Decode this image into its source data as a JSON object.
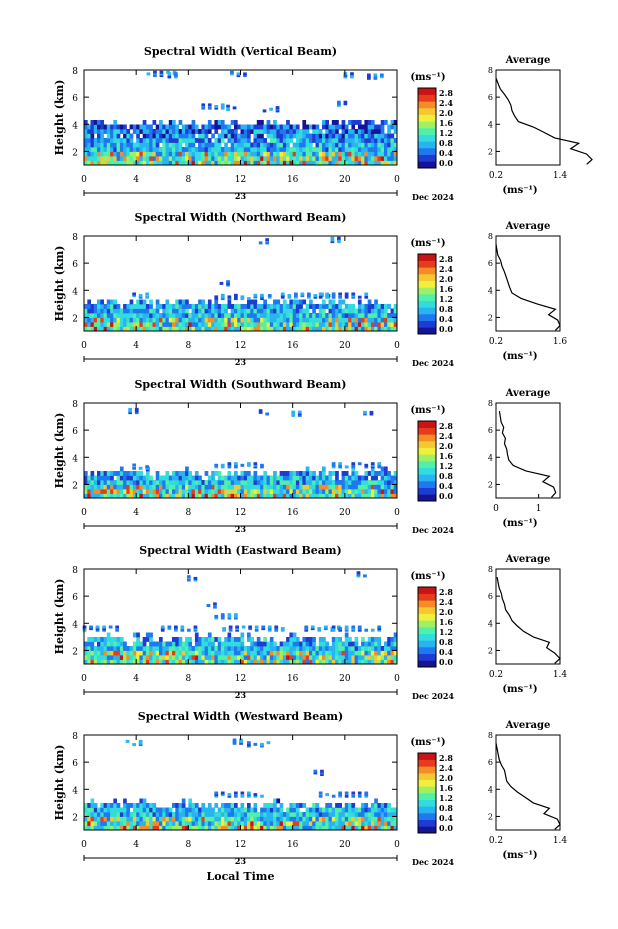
{
  "chart_data": {
    "type": "heatmap",
    "shared": {
      "x_ticks": [
        "0",
        "4",
        "8",
        "12",
        "16",
        "20",
        "0"
      ],
      "xlim": [
        0,
        24
      ],
      "date_day": "23",
      "date_label": "Dec 2024",
      "ylabel": "Height (km)",
      "y_ticks": [
        "2",
        "4",
        "6",
        "8"
      ],
      "ylim": [
        1,
        8
      ],
      "unit_label": "(ms⁻¹)",
      "colorbar_ticks": [
        "0.0",
        "0.4",
        "0.8",
        "1.2",
        "1.6",
        "2.0",
        "2.4",
        "2.8"
      ],
      "colorbar_range": [
        0,
        3.0
      ],
      "colorscale": [
        "#141496",
        "#1e3cd2",
        "#1e78f0",
        "#28b4f0",
        "#32dcdc",
        "#50f0aa",
        "#a0f064",
        "#f0f03c",
        "#f5c832",
        "#f58c28",
        "#e63c1e",
        "#c81414"
      ],
      "avg_title": "Average",
      "avg_xlabel": "(ms⁻¹)",
      "xlabel_bottom": "Local Time"
    },
    "panels": [
      {
        "title": "Spectral Width (Vertical Beam)",
        "avg_xticks": [
          "0.2",
          "1.4"
        ],
        "avg_xlim": [
          0.2,
          1.4
        ],
        "cover_top": 4.0,
        "profile": [
          [
            1.05,
            1.9
          ],
          [
            1.4,
            2.0
          ],
          [
            1.8,
            1.9
          ],
          [
            2.2,
            1.6
          ],
          [
            2.6,
            1.75
          ],
          [
            3.0,
            1.3
          ],
          [
            3.4,
            1.1
          ],
          [
            3.8,
            0.9
          ],
          [
            4.2,
            0.62
          ],
          [
            4.6,
            0.55
          ],
          [
            5.0,
            0.5
          ],
          [
            5.4,
            0.48
          ],
          [
            5.8,
            0.43
          ],
          [
            6.2,
            0.36
          ],
          [
            6.6,
            0.28
          ],
          [
            7.0,
            0.24
          ],
          [
            7.4,
            0.2
          ]
        ],
        "aloft": [
          [
            6,
            7.7,
            0.6
          ],
          [
            7,
            7.6,
            0.3
          ],
          [
            12,
            7.7,
            0.4
          ],
          [
            20.5,
            7.6,
            0.3
          ],
          [
            22.5,
            7.5,
            0.4
          ],
          [
            10,
            5.3,
            0.5
          ],
          [
            11.5,
            5.2,
            0.3
          ],
          [
            14.5,
            5.1,
            0.4
          ],
          [
            20,
            5.5,
            0.3
          ]
        ]
      },
      {
        "title": "Spectral Width (Northward Beam)",
        "avg_xticks": [
          "0.2",
          "1.6"
        ],
        "avg_xlim": [
          0.2,
          1.6
        ],
        "cover_top": 3.0,
        "profile": [
          [
            1.05,
            1.5
          ],
          [
            1.4,
            1.6
          ],
          [
            1.8,
            1.55
          ],
          [
            2.2,
            1.35
          ],
          [
            2.6,
            1.5
          ],
          [
            3.0,
            1.1
          ],
          [
            3.4,
            0.75
          ],
          [
            3.8,
            0.55
          ],
          [
            4.2,
            0.5
          ],
          [
            4.6,
            0.46
          ],
          [
            5.0,
            0.42
          ],
          [
            5.4,
            0.38
          ],
          [
            5.8,
            0.33
          ],
          [
            6.2,
            0.3
          ],
          [
            6.6,
            0.24
          ],
          [
            7.0,
            0.22
          ],
          [
            7.4,
            0.2
          ]
        ],
        "aloft": [
          [
            12,
            3.5,
            1.0
          ],
          [
            16.5,
            3.6,
            1.2
          ],
          [
            20,
            3.6,
            1.0
          ],
          [
            14,
            7.6,
            0.3
          ],
          [
            19.5,
            7.7,
            0.3
          ],
          [
            4.5,
            3.6,
            0.4
          ],
          [
            11,
            4.5,
            0.3
          ]
        ]
      },
      {
        "title": "Spectral Width (Southward Beam)",
        "avg_xticks": [
          "0",
          "1"
        ],
        "avg_xlim": [
          0,
          1.5
        ],
        "cover_top": 2.8,
        "profile": [
          [
            1.05,
            1.3
          ],
          [
            1.4,
            1.4
          ],
          [
            1.8,
            1.35
          ],
          [
            2.2,
            1.1
          ],
          [
            2.6,
            1.25
          ],
          [
            3.0,
            0.7
          ],
          [
            3.4,
            0.4
          ],
          [
            3.8,
            0.3
          ],
          [
            4.2,
            0.27
          ],
          [
            4.6,
            0.25
          ],
          [
            5.0,
            0.2
          ],
          [
            5.4,
            0.22
          ],
          [
            5.8,
            0.15
          ],
          [
            6.2,
            0.18
          ],
          [
            6.6,
            0.12
          ],
          [
            7.0,
            0.1
          ],
          [
            7.4,
            0.08
          ]
        ],
        "aloft": [
          [
            12,
            3.4,
            1.0
          ],
          [
            21,
            3.4,
            1.0
          ],
          [
            4.5,
            3.3,
            0.4
          ],
          [
            14,
            7.3,
            0.3
          ],
          [
            22,
            7.3,
            0.3
          ],
          [
            4,
            7.4,
            0.3
          ],
          [
            16.5,
            7.2,
            0.3
          ]
        ]
      },
      {
        "title": "Spectral Width (Eastward Beam)",
        "avg_xticks": [
          "0.2",
          "1.4"
        ],
        "avg_xlim": [
          0.2,
          1.4
        ],
        "cover_top": 2.8,
        "profile": [
          [
            1.05,
            1.3
          ],
          [
            1.4,
            1.4
          ],
          [
            1.8,
            1.3
          ],
          [
            2.2,
            1.15
          ],
          [
            2.6,
            1.2
          ],
          [
            3.0,
            0.9
          ],
          [
            3.4,
            0.72
          ],
          [
            3.8,
            0.6
          ],
          [
            4.2,
            0.5
          ],
          [
            4.6,
            0.45
          ],
          [
            5.0,
            0.38
          ],
          [
            5.4,
            0.36
          ],
          [
            5.8,
            0.32
          ],
          [
            6.2,
            0.3
          ],
          [
            6.6,
            0.26
          ],
          [
            7.0,
            0.24
          ],
          [
            7.4,
            0.22
          ]
        ],
        "aloft": [
          [
            1.5,
            3.6,
            0.8
          ],
          [
            7.5,
            3.6,
            0.8
          ],
          [
            13,
            3.6,
            1.2
          ],
          [
            18.5,
            3.6,
            0.8
          ],
          [
            21,
            3.6,
            1.0
          ],
          [
            8.5,
            7.3,
            0.3
          ],
          [
            21.5,
            7.6,
            0.3
          ],
          [
            11,
            4.5,
            0.5
          ],
          [
            10,
            5.3,
            0.3
          ]
        ]
      },
      {
        "title": "Spectral Width (Westward Beam)",
        "avg_xticks": [
          "0.2",
          "1.4"
        ],
        "avg_xlim": [
          0.2,
          1.4
        ],
        "cover_top": 2.8,
        "profile": [
          [
            1.05,
            1.3
          ],
          [
            1.4,
            1.4
          ],
          [
            1.8,
            1.35
          ],
          [
            2.2,
            1.1
          ],
          [
            2.6,
            1.2
          ],
          [
            3.0,
            0.9
          ],
          [
            3.4,
            0.75
          ],
          [
            3.8,
            0.6
          ],
          [
            4.2,
            0.48
          ],
          [
            4.6,
            0.4
          ],
          [
            5.0,
            0.38
          ],
          [
            5.4,
            0.36
          ],
          [
            5.8,
            0.3
          ],
          [
            6.2,
            0.26
          ],
          [
            6.6,
            0.24
          ],
          [
            7.0,
            0.22
          ],
          [
            7.4,
            0.2
          ]
        ],
        "aloft": [
          [
            12,
            3.6,
            1.0
          ],
          [
            20,
            3.6,
            1.0
          ],
          [
            4,
            7.4,
            0.4
          ],
          [
            12,
            7.5,
            0.3
          ],
          [
            13.5,
            7.3,
            0.5
          ],
          [
            18,
            5.2,
            0.2
          ]
        ]
      }
    ]
  }
}
